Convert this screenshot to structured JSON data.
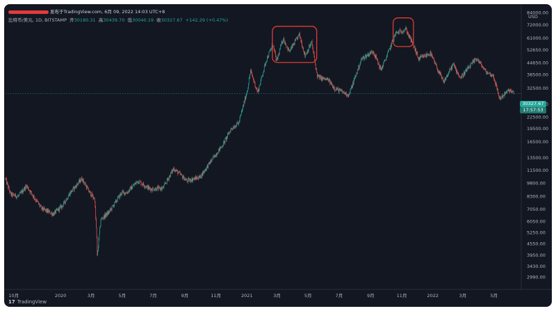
{
  "header": {
    "source_note": "发布于TradingView.com, 6月 09, 2022 14:03 UTC+8",
    "symbol": "比特币/美元, 1D, BITSTAMP",
    "ohlc": {
      "open_label": "开",
      "open": "30180.31",
      "high_label": "高",
      "high": "30439.70",
      "low_label": "低",
      "low": "30040.19",
      "close_label": "收",
      "close": "30327.67",
      "change": "+142.29 (+0.47%)"
    }
  },
  "footer": {
    "brand": "TradingView"
  },
  "badges": {
    "last_price": "30327.67",
    "countdown": "17:57:53"
  },
  "colors": {
    "up": "#26a69a",
    "down": "#ef5350",
    "background": "#131722",
    "grid": "#1e222d",
    "annotation": "#e03c31",
    "text": "#b2b5be"
  },
  "chart_data": {
    "type": "candlestick",
    "currency": "USD",
    "log_scale": true,
    "ylim": [
      2800,
      86000
    ],
    "y_ticks": [
      84000,
      72000,
      61000,
      52650,
      44650,
      38500,
      32500,
      26500,
      22500,
      19500,
      16500,
      13500,
      11500,
      9800,
      8300,
      7050,
      6050,
      5250,
      4550,
      3950,
      3430,
      2990
    ],
    "y_tick_labels": [
      "84000.00",
      "72000.00",
      "61000.00",
      "52650.00",
      "44650.00",
      "38500.00",
      "32500.00",
      "26500.00",
      "22500.00",
      "19500.00",
      "16500.00",
      "13500.00",
      "11500.00",
      "9800.00",
      "8300.00",
      "7050.00",
      "6050.00",
      "5250.00",
      "4550.00",
      "3950.00",
      "3430.00",
      "2990.00"
    ],
    "x_ticks": [
      {
        "date": "2019-10-01",
        "label": "10月"
      },
      {
        "date": "2020-01-01",
        "label": "2020"
      },
      {
        "date": "2020-03-01",
        "label": "3月"
      },
      {
        "date": "2020-05-01",
        "label": "5月"
      },
      {
        "date": "2020-07-01",
        "label": "7月"
      },
      {
        "date": "2020-09-01",
        "label": "9月"
      },
      {
        "date": "2020-11-01",
        "label": "11月"
      },
      {
        "date": "2021-01-01",
        "label": "2021"
      },
      {
        "date": "2021-03-01",
        "label": "3月"
      },
      {
        "date": "2021-05-01",
        "label": "5月"
      },
      {
        "date": "2021-07-01",
        "label": "7月"
      },
      {
        "date": "2021-09-01",
        "label": "9月"
      },
      {
        "date": "2021-11-01",
        "label": "11月"
      },
      {
        "date": "2022-01-01",
        "label": "2022"
      },
      {
        "date": "2022-03-01",
        "label": "3月"
      },
      {
        "date": "2022-05-01",
        "label": "5月"
      }
    ],
    "x_range": [
      "2019-09-15",
      "2022-06-25"
    ],
    "grid": false,
    "last_price": 30327.67,
    "price_path": [
      [
        "2019-09-15",
        10300
      ],
      [
        "2019-09-25",
        8500
      ],
      [
        "2019-10-10",
        8300
      ],
      [
        "2019-10-26",
        9500
      ],
      [
        "2019-11-25",
        7100
      ],
      [
        "2019-12-18",
        6650
      ],
      [
        "2020-01-05",
        7400
      ],
      [
        "2020-01-20",
        8700
      ],
      [
        "2020-02-12",
        10400
      ],
      [
        "2020-02-26",
        8800
      ],
      [
        "2020-03-08",
        8000
      ],
      [
        "2020-03-12",
        4900
      ],
      [
        "2020-03-13",
        3900
      ],
      [
        "2020-03-20",
        6200
      ],
      [
        "2020-04-05",
        6800
      ],
      [
        "2020-04-30",
        8700
      ],
      [
        "2020-05-10",
        8700
      ],
      [
        "2020-06-01",
        10100
      ],
      [
        "2020-06-25",
        9100
      ],
      [
        "2020-07-20",
        9200
      ],
      [
        "2020-08-10",
        11800
      ],
      [
        "2020-09-05",
        10100
      ],
      [
        "2020-10-01",
        10600
      ],
      [
        "2020-10-21",
        12800
      ],
      [
        "2020-11-15",
        16000
      ],
      [
        "2020-12-01",
        19500
      ],
      [
        "2020-12-16",
        21000
      ],
      [
        "2021-01-02",
        32000
      ],
      [
        "2021-01-08",
        40500
      ],
      [
        "2021-01-22",
        30800
      ],
      [
        "2021-02-08",
        46500
      ],
      [
        "2021-02-21",
        56500
      ],
      [
        "2021-02-28",
        45500
      ],
      [
        "2021-03-13",
        61000
      ],
      [
        "2021-03-25",
        51500
      ],
      [
        "2021-04-14",
        64000
      ],
      [
        "2021-04-25",
        49000
      ],
      [
        "2021-05-08",
        58000
      ],
      [
        "2021-05-19",
        38000
      ],
      [
        "2021-05-25",
        37000
      ],
      [
        "2021-06-10",
        36000
      ],
      [
        "2021-06-22",
        32500
      ],
      [
        "2021-07-20",
        29800
      ],
      [
        "2021-08-14",
        47000
      ],
      [
        "2021-09-06",
        52000
      ],
      [
        "2021-09-21",
        41000
      ],
      [
        "2021-10-01",
        47500
      ],
      [
        "2021-10-20",
        65000
      ],
      [
        "2021-11-09",
        68500
      ],
      [
        "2021-11-26",
        54000
      ],
      [
        "2021-12-04",
        47000
      ],
      [
        "2021-12-27",
        50500
      ],
      [
        "2022-01-22",
        35000
      ],
      [
        "2022-02-10",
        44000
      ],
      [
        "2022-02-24",
        37000
      ],
      [
        "2022-03-28",
        47500
      ],
      [
        "2022-04-15",
        40000
      ],
      [
        "2022-04-30",
        38000
      ],
      [
        "2022-05-12",
        28500
      ],
      [
        "2022-05-31",
        31800
      ],
      [
        "2022-06-09",
        30327
      ]
    ],
    "annotations": [
      {
        "type": "rectangle",
        "label": "",
        "from": "2021-02-20",
        "to": "2021-05-18",
        "price_low": 45000,
        "price_high": 71000
      },
      {
        "type": "rectangle",
        "label": "",
        "from": "2021-10-15",
        "to": "2021-11-24",
        "price_low": 55000,
        "price_high": 79000
      }
    ]
  }
}
